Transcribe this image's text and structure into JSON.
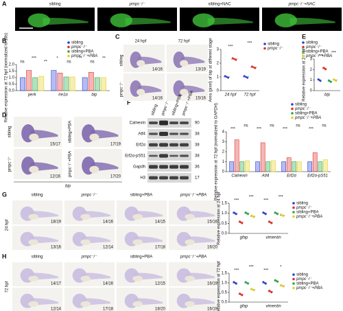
{
  "panels": {
    "A": {
      "label": "A",
      "conditions": [
        "sibling",
        "pmpc⁻/⁻",
        "sibling+NAC",
        "pmpc⁻/⁻+NAC"
      ]
    },
    "B": {
      "label": "B"
    },
    "C": {
      "label": "C",
      "stages": [
        "24 hpf",
        "72 hpf"
      ],
      "rows": [
        "sibling",
        "pmpc⁻/⁻"
      ],
      "counts": [
        "14/16",
        "13/19",
        "14/16",
        "15/16"
      ]
    },
    "D": {
      "label": "D",
      "rows": [
        "sibling",
        "pmpc⁻/⁻"
      ],
      "treated": [
        "sibling+PBA",
        "pmpc⁻/⁻+PBA"
      ],
      "counts": [
        "15/17",
        "17/19",
        "12/16",
        "17/20"
      ],
      "gene": "bip"
    },
    "E": {
      "label": "E"
    },
    "F": {
      "label": "F",
      "lanes": [
        "sibling",
        "pmpc⁻/⁻",
        "sibling+PBA",
        "pmpc⁻/⁻+PBA"
      ],
      "proteins": [
        "Calnexin",
        "Atf4",
        "Eif2α",
        "Eif2α-pS51",
        "Gapdh",
        "H3"
      ],
      "kda": [
        "90",
        "38",
        "38",
        "38",
        "36",
        "17"
      ]
    },
    "G": {
      "label": "G",
      "stage": "24 hpf",
      "conditions": [
        "sibling",
        "pmpc⁻/⁻",
        "sibling+PBA",
        "pmpc⁻/⁻+PBA"
      ],
      "counts": [
        "18/19",
        "14/16",
        "14/15",
        "15/16",
        "13/16",
        "12/14",
        "17/18",
        "16/20"
      ]
    },
    "H": {
      "label": "H",
      "stage": "72 hpf",
      "conditions": [
        "sibling",
        "pmpc⁻/⁻",
        "sibling+PBA",
        "pmpc⁻/⁻+PBA"
      ],
      "counts": [
        "14/17",
        "14/16",
        "12/15",
        "16/19",
        "12/14",
        "17/18",
        "18/20",
        "16/19"
      ]
    }
  },
  "chart_data": [
    {
      "type": "bar",
      "ylabel": "Relative expression at 72 hpf (normalized to 18s)",
      "categories": [
        "perk",
        "ire1α",
        "bip"
      ],
      "series": [
        {
          "name": "sibling",
          "color": "#2a3fd6",
          "values": [
            1.0,
            1.55,
            1.0
          ]
        },
        {
          "name": "pmpc⁻/⁻",
          "color": "#e0302a",
          "values": [
            1.55,
            1.35,
            1.4
          ]
        },
        {
          "name": "sibling+PBA",
          "color": "#2aa84a",
          "values": [
            1.0,
            1.05,
            1.0
          ]
        },
        {
          "name": "pmpc⁻/⁻+PBA",
          "color": "#e8d020",
          "values": [
            1.1,
            1.05,
            1.0
          ]
        }
      ],
      "ylim": [
        0,
        2
      ],
      "yticks": [
        {
          "value": 0,
          "label": "0.0"
        },
        0.5,
        {
          "value": 1,
          "label": "1.0"
        },
        1.5,
        {
          "value": 2,
          "label": "2.0"
        }
      ],
      "annotations": [
        "ns",
        "***",
        "**",
        "*",
        "ns",
        "**",
        "ns",
        "**"
      ]
    },
    {
      "type": "dot",
      "ylabel": "Area (pixel) of bip at different stage",
      "categories": [
        "24 hpf",
        "72 hpf"
      ],
      "series": [
        {
          "name": "sibling",
          "color": "#2a3fd6",
          "values": [
            1.0,
            1.0
          ]
        },
        {
          "name": "pmpc⁻/⁻",
          "color": "#e0302a",
          "values": [
            2.3,
            1.7
          ]
        }
      ],
      "ylim": [
        0,
        3
      ],
      "yticks": [
        0,
        1,
        2,
        3
      ],
      "annotations": [
        "***",
        "***"
      ]
    },
    {
      "type": "dot",
      "ylabel": "Relative expression at 24 hpf",
      "categories": [
        "bip"
      ],
      "series": [
        {
          "name": "sibling",
          "color": "#2a3fd6",
          "values": [
            1.0
          ]
        },
        {
          "name": "pmpc⁻/⁻",
          "color": "#e0302a",
          "values": [
            2.1
          ]
        },
        {
          "name": "sibling+PBA",
          "color": "#2aa84a",
          "values": [
            0.9
          ]
        },
        {
          "name": "pmpc⁻/⁻+PBA",
          "color": "#e8d020",
          "values": [
            1.0
          ]
        }
      ],
      "ylim": [
        0,
        3
      ],
      "yticks": [
        0,
        1,
        2,
        3
      ],
      "annotations": [
        "***",
        "***"
      ]
    },
    {
      "type": "bar",
      "ylabel": "Relative expression at 72 hpf (normalized to GAPDH)",
      "categories": [
        "Calnexin",
        "Atf4",
        "Eif2α",
        "Eif2α-pS51"
      ],
      "series": [
        {
          "name": "sibling",
          "color": "#2a3fd6",
          "values": [
            1.0,
            1.0,
            1.0,
            1.0
          ]
        },
        {
          "name": "pmpc⁻/⁻",
          "color": "#e0302a",
          "values": [
            3.2,
            2.9,
            1.4,
            1.9
          ]
        },
        {
          "name": "sibling+PBA",
          "color": "#2aa84a",
          "values": [
            1.0,
            1.0,
            1.0,
            1.0
          ]
        },
        {
          "name": "pmpc⁻/⁻+PBA",
          "color": "#e8d020",
          "values": [
            1.1,
            1.1,
            1.0,
            1.2
          ]
        }
      ],
      "ylim": [
        0,
        4
      ],
      "yticks": [
        0,
        1,
        2,
        3,
        4
      ],
      "annotations": [
        "***",
        "ns",
        "***",
        "ns",
        "***",
        "ns",
        "***",
        "ns"
      ]
    },
    {
      "type": "dot",
      "ylabel": "Relative expression at 24 hpf",
      "categories": [
        "gfap",
        "vimentin"
      ],
      "series": [
        {
          "name": "sibling",
          "color": "#2a3fd6",
          "values": [
            1.0,
            1.0
          ]
        },
        {
          "name": "pmpc⁻/⁻",
          "color": "#e0302a",
          "values": [
            0.55,
            0.55
          ]
        },
        {
          "name": "sibling+PBA",
          "color": "#2aa84a",
          "values": [
            1.0,
            1.0
          ]
        },
        {
          "name": "pmpc⁻/⁻+PBA",
          "color": "#e8d020",
          "values": [
            0.85,
            0.9
          ]
        }
      ],
      "ylim": [
        0,
        1.5
      ],
      "yticks": [
        {
          "value": 0,
          "label": "0.0"
        },
        0.5,
        {
          "value": 1,
          "label": "1.0"
        },
        1.5
      ],
      "annotations": [
        "***",
        "***",
        "***",
        "***"
      ]
    },
    {
      "type": "dot",
      "ylabel": "Relative expression at 72 hpf",
      "categories": [
        "gfap",
        "vimentin"
      ],
      "series": [
        {
          "name": "sibling",
          "color": "#2a3fd6",
          "values": [
            1.0,
            1.0
          ]
        },
        {
          "name": "pmpc⁻/⁻",
          "color": "#e0302a",
          "values": [
            0.4,
            0.55
          ]
        },
        {
          "name": "sibling+PBA",
          "color": "#2aa84a",
          "values": [
            1.0,
            1.1
          ]
        },
        {
          "name": "pmpc⁻/⁻+PBA",
          "color": "#e8d020",
          "values": [
            0.65,
            0.85
          ]
        }
      ],
      "ylim": [
        0,
        1.5
      ],
      "yticks": [
        {
          "value": 0,
          "label": "0.0"
        },
        0.5,
        {
          "value": 1,
          "label": "1.0"
        },
        1.5
      ],
      "annotations": [
        "***",
        "***",
        "***",
        "*"
      ]
    }
  ]
}
